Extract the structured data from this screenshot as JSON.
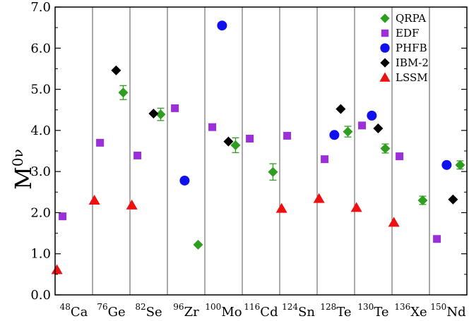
{
  "chart_data": {
    "type": "scatter",
    "title": "",
    "xlabel": "",
    "ylabel": {
      "base": "M",
      "sup": "0ν"
    },
    "ylim": [
      0,
      7
    ],
    "yticks": [
      "0.0",
      "1.0",
      "2.0",
      "3.0",
      "4.0",
      "5.0",
      "6.0",
      "7.0"
    ],
    "grid": "vertical separators between nuclei",
    "legend_position": "top-right",
    "categories": [
      {
        "mass": "48",
        "element": "Ca"
      },
      {
        "mass": "76",
        "element": "Ge"
      },
      {
        "mass": "82",
        "element": "Se"
      },
      {
        "mass": "96",
        "element": "Zr"
      },
      {
        "mass": "100",
        "element": "Mo"
      },
      {
        "mass": "116",
        "element": "Cd"
      },
      {
        "mass": "124",
        "element": "Sn"
      },
      {
        "mass": "128",
        "element": "Te"
      },
      {
        "mass": "130",
        "element": "Te"
      },
      {
        "mass": "136",
        "element": "Xe"
      },
      {
        "mass": "150",
        "element": "Nd"
      }
    ],
    "series": [
      {
        "name": "QRPA",
        "color": "#2e9e1e",
        "marker": "diamond",
        "offset": 0.82,
        "values": [
          null,
          4.92,
          4.39,
          1.22,
          3.64,
          2.99,
          null,
          3.97,
          3.56,
          2.3,
          3.16
        ],
        "errors": [
          null,
          0.17,
          0.15,
          0,
          0.18,
          0.2,
          null,
          0.13,
          0.11,
          0.1,
          0.1
        ]
      },
      {
        "name": "EDF",
        "color": "#9b30d9",
        "marker": "square",
        "offset": 0.2,
        "values": [
          1.91,
          3.7,
          3.39,
          4.54,
          4.08,
          3.8,
          3.87,
          3.3,
          4.12,
          3.37,
          1.36
        ]
      },
      {
        "name": "PHFB",
        "color": "#1010ee",
        "marker": "circle",
        "offset": 0.46,
        "values": [
          null,
          null,
          null,
          2.78,
          6.55,
          null,
          null,
          3.89,
          4.36,
          null,
          3.16
        ]
      },
      {
        "name": "IBM-2",
        "color": "#000000",
        "marker": "diamond",
        "offset": 0.63,
        "values": [
          null,
          5.46,
          4.41,
          null,
          3.73,
          null,
          null,
          4.52,
          4.05,
          null,
          2.32
        ]
      },
      {
        "name": "LSSM",
        "color": "#ee1010",
        "marker": "triangle",
        "offset": 0.05,
        "values": [
          0.61,
          2.3,
          2.18,
          null,
          null,
          null,
          2.1,
          2.34,
          2.12,
          1.76,
          null
        ]
      }
    ]
  }
}
